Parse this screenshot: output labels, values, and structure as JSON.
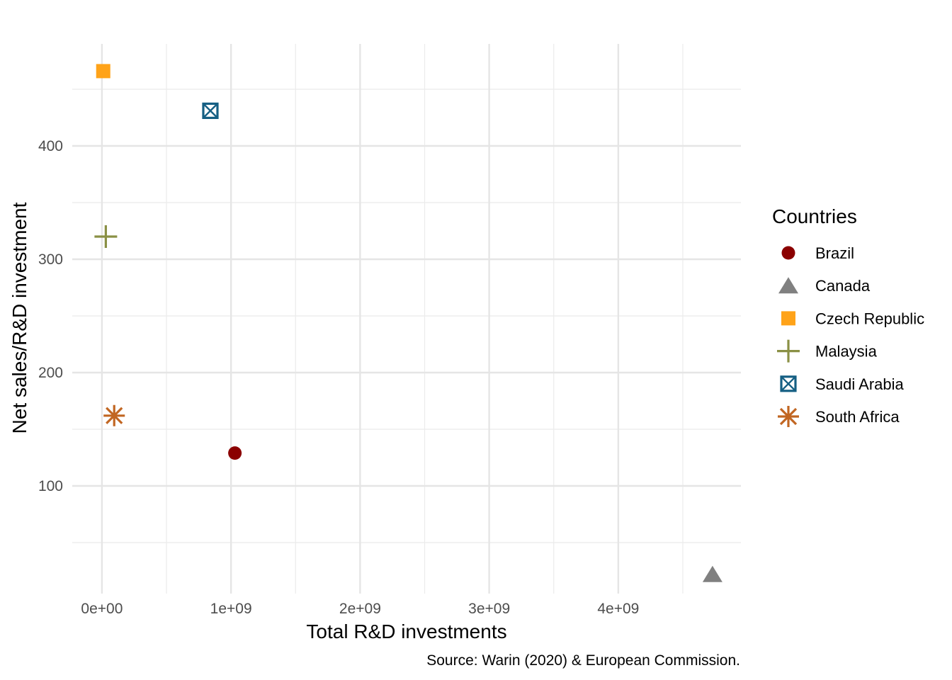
{
  "chart_data": {
    "type": "scatter",
    "xlabel": "Total R&D investments",
    "ylabel": "Net sales/R&D investment",
    "caption": "Source: Warin (2020) & European Commission.",
    "xlim": [
      -230000000,
      4950000000
    ],
    "ylim": [
      5,
      490
    ],
    "x_ticks": [
      0,
      1000000000,
      2000000000,
      3000000000,
      4000000000
    ],
    "x_tick_labels": [
      "0e+00",
      "1e+09",
      "2e+09",
      "3e+09",
      "4e+09"
    ],
    "y_ticks": [
      100,
      200,
      300,
      400
    ],
    "y_tick_labels": [
      "100",
      "200",
      "300",
      "400"
    ],
    "grid": true,
    "legend": {
      "title": "Countries",
      "position": "right",
      "entries": [
        {
          "label": "Brazil",
          "color": "#8B0000",
          "shape": "circle"
        },
        {
          "label": "Canada",
          "color": "#808080",
          "shape": "triangle"
        },
        {
          "label": "Czech Republic",
          "color": "#FFA319",
          "shape": "square"
        },
        {
          "label": "Malaysia",
          "color": "#8A9045",
          "shape": "plus"
        },
        {
          "label": "Saudi Arabia",
          "color": "#155F83",
          "shape": "square-x"
        },
        {
          "label": "South Africa",
          "color": "#C16622",
          "shape": "asterisk"
        }
      ]
    },
    "series": [
      {
        "name": "Brazil",
        "x": 1030000000,
        "y": 129
      },
      {
        "name": "Canada",
        "x": 4730000000,
        "y": 22
      },
      {
        "name": "Czech Republic",
        "x": 10000000,
        "y": 466
      },
      {
        "name": "Malaysia",
        "x": 30000000,
        "y": 320
      },
      {
        "name": "Saudi Arabia",
        "x": 840000000,
        "y": 431
      },
      {
        "name": "South Africa",
        "x": 95000000,
        "y": 162
      }
    ]
  }
}
